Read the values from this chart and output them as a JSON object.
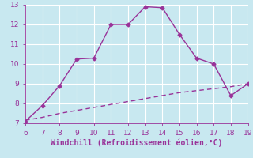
{
  "xlabel": "Windchill (Refroidissement éolien,°C)",
  "line1_x": [
    6,
    7,
    8,
    9,
    10,
    11,
    12,
    13,
    14,
    15,
    16,
    17,
    18,
    19
  ],
  "line1_y": [
    7.1,
    7.9,
    8.9,
    10.25,
    10.3,
    12.0,
    12.0,
    12.9,
    12.85,
    11.5,
    10.3,
    10.0,
    8.4,
    9.0
  ],
  "line2_x": [
    6,
    7,
    8,
    9,
    10,
    11,
    12,
    13,
    14,
    15,
    16,
    17,
    18,
    19
  ],
  "line2_y": [
    7.15,
    7.3,
    7.5,
    7.65,
    7.8,
    7.95,
    8.1,
    8.25,
    8.4,
    8.55,
    8.65,
    8.75,
    8.85,
    9.0
  ],
  "line_color": "#993399",
  "bg_color": "#c8e8f0",
  "grid_color": "#ffffff",
  "xlim": [
    6,
    19
  ],
  "ylim": [
    7,
    13
  ],
  "xticks": [
    6,
    7,
    8,
    9,
    10,
    11,
    12,
    13,
    14,
    15,
    16,
    17,
    18,
    19
  ],
  "yticks": [
    7,
    8,
    9,
    10,
    11,
    12,
    13
  ],
  "tick_color": "#993399",
  "label_color": "#993399",
  "font_size_tick": 6.5,
  "font_size_label": 7.0,
  "marker": "D",
  "marker_size": 2.5,
  "linewidth": 1.0
}
